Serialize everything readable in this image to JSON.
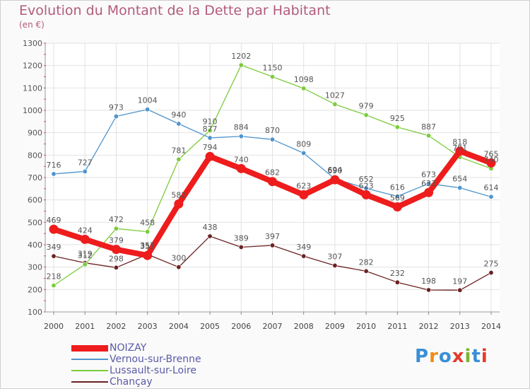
{
  "title": "Evolution du Montant de la Dette par Habitant",
  "subtitle": "(en €)",
  "logo_text": "Proxiti",
  "chart_data": {
    "type": "line",
    "title": "Evolution du Montant de la Dette par Habitant",
    "subtitle": "(en €)",
    "xlabel": "",
    "ylabel": "",
    "x": [
      "2000",
      "2001",
      "2002",
      "2003",
      "2004",
      "2005",
      "2006",
      "2007",
      "2008",
      "2009",
      "2010",
      "2011",
      "2012",
      "2013",
      "2014"
    ],
    "ylim": [
      100,
      1300
    ],
    "yticks": [
      100,
      200,
      300,
      400,
      500,
      600,
      700,
      800,
      900,
      1000,
      1100,
      1200,
      1300
    ],
    "grid": true,
    "legend_position": "bottom-left",
    "series": [
      {
        "name": "NOIZAY",
        "color": "#ee1c1c",
        "values": [
          469,
          424,
          379,
          352,
          582,
          794,
          740,
          682,
          623,
          690,
          623,
          569,
          633,
          818,
          765
        ]
      },
      {
        "name": "Vernou-sur-Brenne",
        "color": "#4f94cd",
        "values": [
          716,
          727,
          973,
          1004,
          940,
          877,
          884,
          870,
          809,
          694,
          652,
          616,
          673,
          654,
          614
        ]
      },
      {
        "name": "Lussault-sur-Loire",
        "color": "#7ccb3b",
        "values": [
          218,
          312,
          472,
          458,
          781,
          910,
          1202,
          1150,
          1098,
          1027,
          979,
          925,
          887,
          791,
          740
        ]
      },
      {
        "name": "Chançay",
        "color": "#6b2222",
        "values": [
          349,
          319,
          298,
          357,
          300,
          438,
          389,
          397,
          349,
          307,
          282,
          232,
          198,
          197,
          275
        ]
      }
    ]
  }
}
